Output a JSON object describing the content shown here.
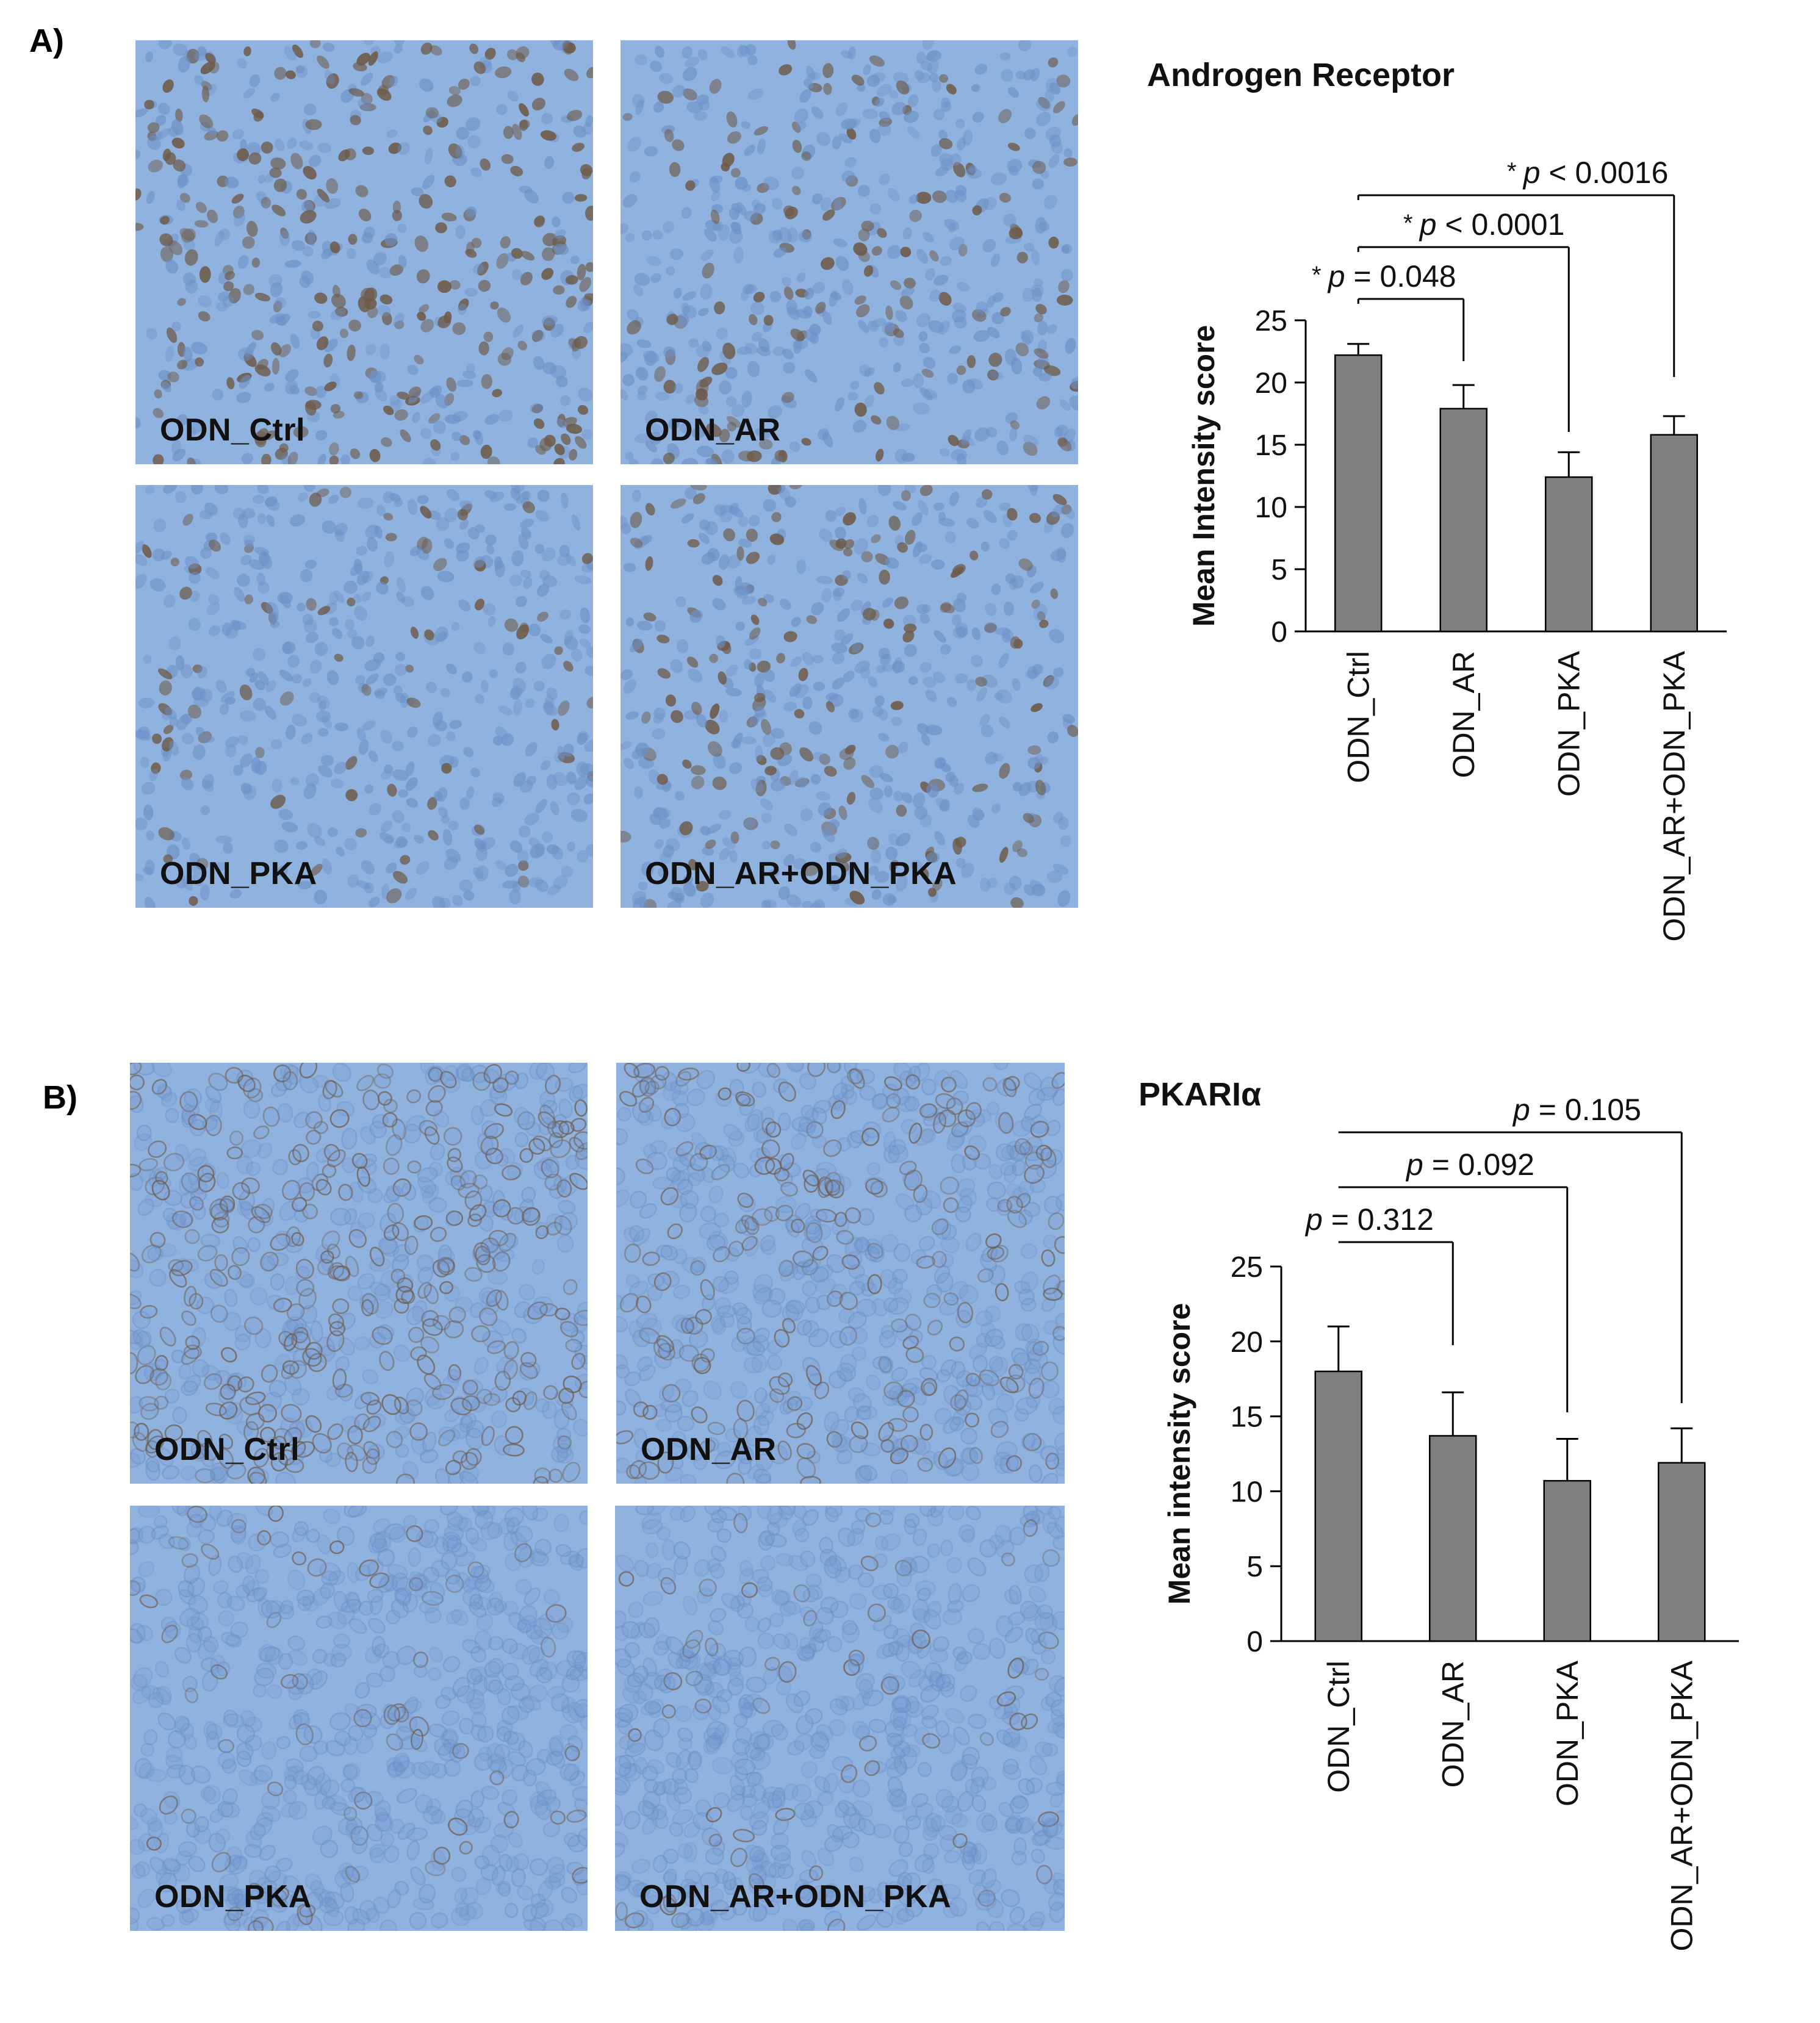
{
  "panel_a": {
    "label": "A)",
    "micrographs": [
      {
        "label": "ODN_Ctrl",
        "stain": "nuclear",
        "density": 1.0
      },
      {
        "label": "ODN_AR",
        "stain": "nuclear",
        "density": 0.45
      },
      {
        "label": "ODN_PKA",
        "stain": "nuclear",
        "density": 0.25
      },
      {
        "label": "ODN_AR+ODN_PKA",
        "stain": "nuclear",
        "density": 0.6
      }
    ]
  },
  "panel_b": {
    "label": "B)",
    "micrographs": [
      {
        "label": "ODN_Ctrl",
        "stain": "membrane",
        "density": 1.0
      },
      {
        "label": "ODN_AR",
        "stain": "membrane",
        "density": 0.6
      },
      {
        "label": "ODN_PKA",
        "stain": "membrane",
        "density": 0.2
      },
      {
        "label": "ODN_AR+ODN_PKA",
        "stain": "membrane",
        "density": 0.2
      }
    ]
  },
  "colors": {
    "tissue_background": "#8fb2de",
    "nucleus_blue": "#6c8fc6",
    "nucleus_brown": "#6e5a48",
    "bar_fill": "#7f7f7f",
    "axis": "#000000"
  },
  "chart_data": [
    {
      "type": "bar",
      "title": "Androgen Receptor",
      "ylabel": "Mean Intensity score",
      "xlabel": "",
      "categories": [
        "ODN_Ctrl",
        "ODN_AR",
        "ODN_PKA",
        "ODN_AR+ODN_PKA"
      ],
      "values": [
        22.2,
        17.9,
        12.4,
        15.8
      ],
      "errors": [
        0.9,
        1.9,
        2.0,
        1.5
      ],
      "ylim": [
        0,
        25
      ],
      "yticks": [
        0,
        5,
        10,
        15,
        20,
        25
      ],
      "annotations": [
        {
          "from": 0,
          "to": 1,
          "star": "*",
          "italic": "p",
          "rest": " = 0.048"
        },
        {
          "from": 0,
          "to": 2,
          "star": "*",
          "italic": "p",
          "rest": " < 0.0001"
        },
        {
          "from": 0,
          "to": 3,
          "star": "*",
          "italic": "p",
          "rest": " < 0.0016"
        }
      ]
    },
    {
      "type": "bar",
      "title": "PKARIα",
      "ylabel": "Mean intensity score",
      "xlabel": "",
      "categories": [
        "ODN_Ctrl",
        "ODN_AR",
        "ODN_PKA",
        "ODN_AR+ODN_PKA"
      ],
      "values": [
        18.0,
        13.7,
        10.7,
        11.9
      ],
      "errors": [
        3.0,
        2.9,
        2.8,
        2.3
      ],
      "ylim": [
        0,
        25
      ],
      "yticks": [
        0,
        5,
        10,
        15,
        20,
        25
      ],
      "annotations": [
        {
          "from": 0,
          "to": 1,
          "star": "",
          "italic": "p",
          "rest": " = 0.312"
        },
        {
          "from": 0,
          "to": 2,
          "star": "",
          "italic": "p",
          "rest": " = 0.092"
        },
        {
          "from": 0,
          "to": 3,
          "star": "",
          "italic": "p",
          "rest": " = 0.105"
        }
      ]
    }
  ]
}
